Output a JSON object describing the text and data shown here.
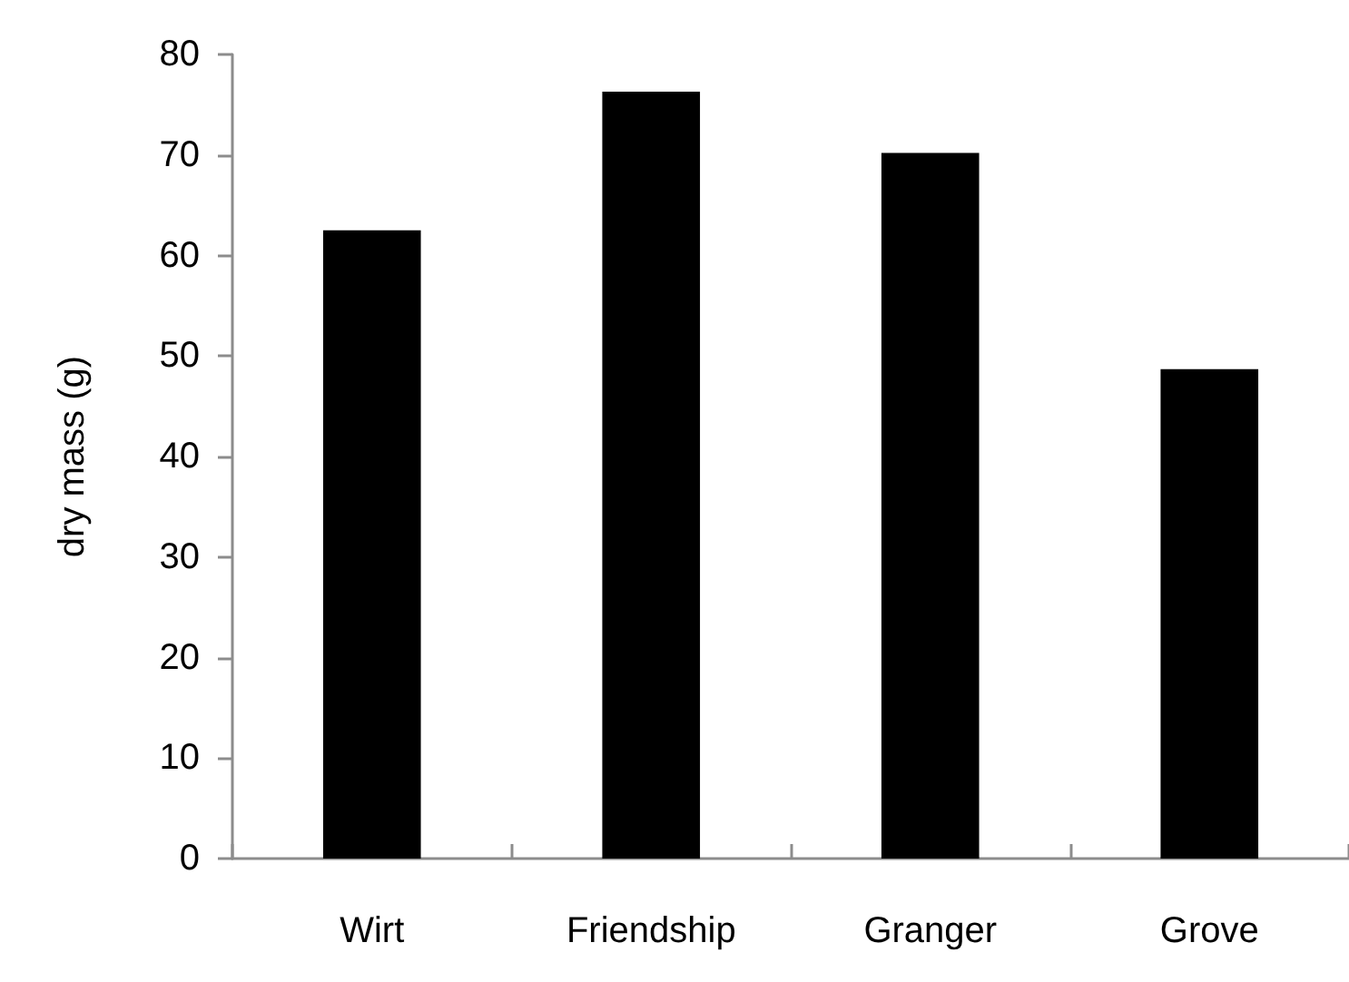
{
  "chart_data": {
    "type": "bar",
    "ylabel": "dry mass (g)",
    "categories": [
      "Wirt",
      "Friendship",
      "Granger",
      "Grove"
    ],
    "values": [
      62.5,
      76.3,
      70.2,
      48.7
    ],
    "color": "#000000",
    "ylim": [
      0,
      80
    ],
    "yticks": [
      0,
      10,
      20,
      30,
      40,
      50,
      60,
      70,
      80
    ],
    "grid": false
  }
}
